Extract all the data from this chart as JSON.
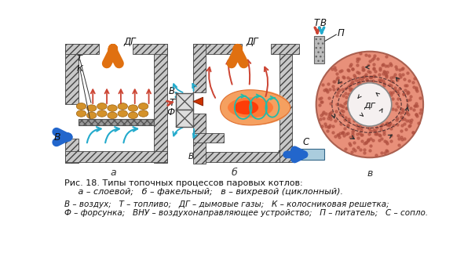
{
  "title": "Рис. 18. Типы топочных процессов паровых котлов:",
  "subtitle": "     а – слоевой;   б – факельный;   в – вихревой (циклонный).",
  "legend_line1": "В – воздух;   Т – топливо;   ДГ – дымовые газы;   К – колосниковая решетка;",
  "legend_line2": "Ф – форсунка;   ВНУ – воздухонаправляющее устройство;   П – питатель;   С – сопло.",
  "label_a": "а",
  "label_b": "б",
  "label_c": "в",
  "bg_color": "#ffffff",
  "wall_color": "#c8c8c8",
  "orange_arrow": "#e07010",
  "red_arrow": "#cc4433",
  "cyan_arrow": "#22aacc",
  "blue_arrow": "#2266cc",
  "coal_color": "#d4922a",
  "cyclone_fill": "#e8907a",
  "cyclone_inner": "#f5f0f0"
}
